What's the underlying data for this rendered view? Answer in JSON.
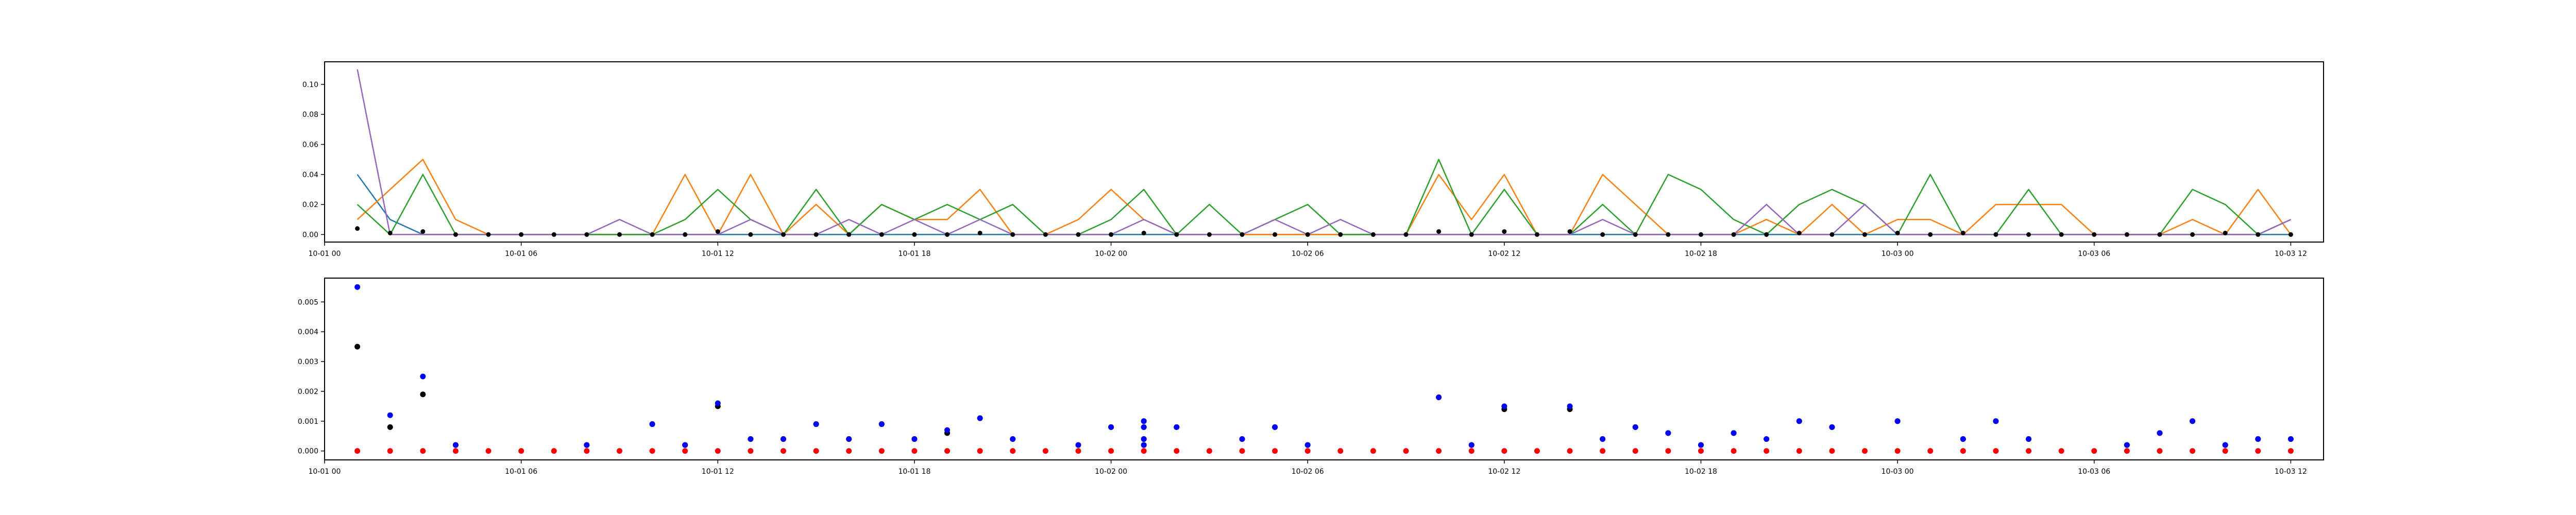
{
  "chart_data": [
    {
      "type": "line",
      "title": "",
      "xlabel": "",
      "ylabel": "",
      "xlim": [
        "10-01 00:00",
        "10-03 13:00"
      ],
      "ylim": [
        -0.005,
        0.115
      ],
      "xticks": [
        "10-01 00",
        "10-01 06",
        "10-01 12",
        "10-01 18",
        "10-02 00",
        "10-02 06",
        "10-02 12",
        "10-02 18",
        "10-03 00",
        "10-03 06",
        "10-03 12"
      ],
      "yticks": [
        "0.00",
        "0.02",
        "0.04",
        "0.06",
        "0.08",
        "0.10"
      ],
      "x": [
        "10-01 01:00",
        "10-01 02:00",
        "10-01 03:00",
        "10-01 04:00",
        "10-01 05:00",
        "10-01 06:00",
        "10-01 07:00",
        "10-01 08:00",
        "10-01 09:00",
        "10-01 10:00",
        "10-01 11:00",
        "10-01 12:00",
        "10-01 13:00",
        "10-01 14:00",
        "10-01 15:00",
        "10-01 16:00",
        "10-01 17:00",
        "10-01 18:00",
        "10-01 19:00",
        "10-01 20:00",
        "10-01 21:00",
        "10-01 22:00",
        "10-01 23:00",
        "10-02 00:00",
        "10-02 01:00",
        "10-02 02:00",
        "10-02 03:00",
        "10-02 04:00",
        "10-02 05:00",
        "10-02 06:00",
        "10-02 07:00",
        "10-02 08:00",
        "10-02 09:00",
        "10-02 10:00",
        "10-02 11:00",
        "10-02 12:00",
        "10-02 13:00",
        "10-02 14:00",
        "10-02 15:00",
        "10-02 16:00",
        "10-02 17:00",
        "10-02 18:00",
        "10-02 19:00",
        "10-02 20:00",
        "10-02 21:00",
        "10-02 22:00",
        "10-02 23:00",
        "10-03 00:00",
        "10-03 01:00",
        "10-03 02:00",
        "10-03 03:00",
        "10-03 04:00",
        "10-03 05:00",
        "10-03 06:00",
        "10-03 07:00",
        "10-03 08:00",
        "10-03 09:00",
        "10-03 10:00",
        "10-03 11:00",
        "10-03 12:00"
      ],
      "series": [
        {
          "color": "#1f77b4",
          "values": [
            0.04,
            0.01,
            0,
            0,
            0,
            0,
            0,
            0,
            0,
            0,
            0,
            0,
            0,
            0,
            0,
            0,
            0,
            0,
            0,
            0,
            0,
            0,
            0,
            0,
            0,
            0,
            0,
            0,
            0,
            0,
            0,
            0,
            0,
            0,
            0,
            0,
            0,
            0,
            0,
            0,
            0,
            0,
            0,
            0,
            0,
            0,
            0,
            0,
            0,
            0,
            0,
            0,
            0,
            0,
            0,
            0,
            0,
            0,
            0,
            0
          ]
        },
        {
          "color": "#ff7f0e",
          "values": [
            0.01,
            0.03,
            0.05,
            0.01,
            0,
            0,
            0,
            0,
            0,
            0,
            0.04,
            0,
            0.04,
            0,
            0.02,
            0,
            0.02,
            0.01,
            0.01,
            0.03,
            0,
            0,
            0.01,
            0.03,
            0.01,
            0,
            0,
            0,
            0,
            0,
            0,
            0,
            0,
            0.04,
            0.01,
            0.04,
            0,
            0,
            0.04,
            0.02,
            0,
            0,
            0,
            0.01,
            0,
            0.02,
            0,
            0.01,
            0.01,
            0,
            0.02,
            0.02,
            0.02,
            0,
            0,
            0,
            0.01,
            0,
            0.03,
            0
          ]
        },
        {
          "color": "#2ca02c",
          "values": [
            0.02,
            0,
            0.04,
            0,
            0,
            0,
            0,
            0,
            0,
            0,
            0.01,
            0.03,
            0.01,
            0,
            0.03,
            0,
            0.02,
            0.01,
            0.02,
            0.01,
            0.02,
            0,
            0,
            0.01,
            0.03,
            0,
            0.02,
            0,
            0.01,
            0.02,
            0,
            0,
            0,
            0.05,
            0,
            0.03,
            0,
            0,
            0.02,
            0,
            0.04,
            0.03,
            0.01,
            0,
            0.02,
            0.03,
            0.02,
            0,
            0.04,
            0,
            0,
            0.03,
            0,
            0,
            0,
            0,
            0.03,
            0.02,
            0,
            0.01
          ]
        },
        {
          "color": "#9467bd",
          "values": [
            0.11,
            0,
            0,
            0,
            0,
            0,
            0,
            0,
            0.01,
            0,
            0,
            0,
            0.01,
            0,
            0,
            0.01,
            0,
            0.01,
            0,
            0.01,
            0,
            0,
            0,
            0,
            0.01,
            0,
            0,
            0,
            0.01,
            0,
            0.01,
            0,
            0,
            0,
            0,
            0,
            0,
            0,
            0.01,
            0,
            0,
            0,
            0,
            0.02,
            0,
            0,
            0.02,
            0,
            0,
            0,
            0,
            0,
            0,
            0,
            0,
            0,
            0,
            0,
            0,
            0.01
          ]
        }
      ],
      "markers": {
        "color": "#000000",
        "x": [
          "10-01 01:00",
          "10-01 02:00",
          "10-01 03:00",
          "10-01 04:00",
          "10-01 05:00",
          "10-01 06:00",
          "10-01 07:00",
          "10-01 08:00",
          "10-01 09:00",
          "10-01 10:00",
          "10-01 11:00",
          "10-01 12:00",
          "10-01 13:00",
          "10-01 14:00",
          "10-01 15:00",
          "10-01 16:00",
          "10-01 17:00",
          "10-01 18:00",
          "10-01 19:00",
          "10-01 20:00",
          "10-01 21:00",
          "10-01 22:00",
          "10-01 23:00",
          "10-02 00:00",
          "10-02 01:00",
          "10-02 02:00",
          "10-02 03:00",
          "10-02 04:00",
          "10-02 05:00",
          "10-02 06:00",
          "10-02 07:00",
          "10-02 08:00",
          "10-02 09:00",
          "10-02 10:00",
          "10-02 11:00",
          "10-02 12:00",
          "10-02 13:00",
          "10-02 14:00",
          "10-02 15:00",
          "10-02 16:00",
          "10-02 17:00",
          "10-02 18:00",
          "10-02 19:00",
          "10-02 20:00",
          "10-02 21:00",
          "10-02 22:00",
          "10-02 23:00",
          "10-03 00:00",
          "10-03 01:00",
          "10-03 02:00",
          "10-03 03:00",
          "10-03 04:00",
          "10-03 05:00",
          "10-03 06:00",
          "10-03 07:00",
          "10-03 08:00",
          "10-03 09:00",
          "10-03 10:00",
          "10-03 11:00",
          "10-03 12:00"
        ],
        "values": [
          0.004,
          0.001,
          0.002,
          0,
          0,
          0,
          0,
          0,
          0,
          0,
          0,
          0.002,
          0,
          0,
          0,
          0,
          0,
          0,
          0,
          0.001,
          0,
          0,
          0,
          0,
          0.001,
          0,
          0,
          0,
          0,
          0,
          0,
          0,
          0,
          0.002,
          0,
          0.002,
          0,
          0.002,
          0,
          0,
          0,
          0,
          0,
          0,
          0.001,
          0,
          0,
          0.001,
          0,
          0.001,
          0,
          0,
          0,
          0,
          0,
          0,
          0,
          0.001,
          0,
          0
        ]
      }
    },
    {
      "type": "scatter",
      "title": "",
      "xlabel": "",
      "ylabel": "",
      "xlim": [
        "10-01 00:00",
        "10-03 13:00"
      ],
      "ylim": [
        -0.0003,
        0.0058
      ],
      "xticks": [
        "10-01 00",
        "10-01 06",
        "10-01 12",
        "10-01 18",
        "10-02 00",
        "10-02 06",
        "10-02 12",
        "10-02 18",
        "10-03 00",
        "10-03 06",
        "10-03 12"
      ],
      "yticks": [
        "0.000",
        "0.001",
        "0.002",
        "0.003",
        "0.004",
        "0.005"
      ],
      "series": [
        {
          "color": "#ff0000",
          "x": [
            "10-01 01:00",
            "10-01 02:00",
            "10-01 03:00",
            "10-01 04:00",
            "10-01 05:00",
            "10-01 06:00",
            "10-01 07:00",
            "10-01 08:00",
            "10-01 09:00",
            "10-01 10:00",
            "10-01 11:00",
            "10-01 12:00",
            "10-01 13:00",
            "10-01 14:00",
            "10-01 15:00",
            "10-01 16:00",
            "10-01 17:00",
            "10-01 18:00",
            "10-01 19:00",
            "10-01 20:00",
            "10-01 21:00",
            "10-01 22:00",
            "10-01 23:00",
            "10-02 00:00",
            "10-02 01:00",
            "10-02 02:00",
            "10-02 03:00",
            "10-02 04:00",
            "10-02 05:00",
            "10-02 06:00",
            "10-02 07:00",
            "10-02 08:00",
            "10-02 09:00",
            "10-02 10:00",
            "10-02 11:00",
            "10-02 12:00",
            "10-02 13:00",
            "10-02 14:00",
            "10-02 15:00",
            "10-02 16:00",
            "10-02 17:00",
            "10-02 18:00",
            "10-02 19:00",
            "10-02 20:00",
            "10-02 21:00",
            "10-02 22:00",
            "10-02 23:00",
            "10-03 00:00",
            "10-03 01:00",
            "10-03 02:00",
            "10-03 03:00",
            "10-03 04:00",
            "10-03 05:00",
            "10-03 06:00",
            "10-03 07:00",
            "10-03 08:00",
            "10-03 09:00",
            "10-03 10:00",
            "10-03 11:00",
            "10-03 12:00"
          ],
          "values": [
            0,
            0,
            0,
            0,
            0,
            0,
            0,
            0,
            0,
            0,
            0,
            0,
            0,
            0,
            0,
            0,
            0,
            0,
            0,
            0,
            0,
            0,
            0,
            0,
            0,
            0,
            0,
            0,
            0,
            0,
            0,
            0,
            0,
            0,
            0,
            0,
            0,
            0,
            0,
            0,
            0,
            0,
            0,
            0,
            0,
            0,
            0,
            0,
            0,
            0,
            0,
            0,
            0,
            0,
            0,
            0,
            0,
            0,
            0,
            0
          ]
        },
        {
          "color": "#000000",
          "x": [
            "10-01 01:00",
            "10-01 02:00",
            "10-01 03:00",
            "10-01 04:00",
            "10-01 08:00",
            "10-01 10:00",
            "10-01 11:00",
            "10-01 12:00",
            "10-01 13:00",
            "10-01 14:00",
            "10-01 15:00",
            "10-01 16:00",
            "10-01 17:00",
            "10-01 18:00",
            "10-01 19:00",
            "10-01 20:00",
            "10-01 21:00",
            "10-02 00:00",
            "10-02 01:00",
            "10-02 01:00",
            "10-02 01:00",
            "10-02 01:00",
            "10-02 02:00",
            "10-02 04:00",
            "10-02 05:00",
            "10-02 06:00",
            "10-02 10:00",
            "10-02 11:00",
            "10-02 12:00",
            "10-02 14:00",
            "10-02 15:00",
            "10-02 16:00",
            "10-02 17:00",
            "10-02 18:00",
            "10-02 19:00",
            "10-02 20:00",
            "10-02 21:00",
            "10-02 22:00",
            "10-03 00:00",
            "10-03 02:00",
            "10-03 03:00",
            "10-03 04:00",
            "10-03 07:00",
            "10-03 08:00",
            "10-03 09:00",
            "10-03 10:00",
            "10-03 11:00",
            "10-03 12:00"
          ],
          "values": [
            0.0035,
            0.0008,
            0.0019,
            0.0002,
            0.0002,
            0.0009,
            0.0002,
            0.0015,
            0.0004,
            0.0004,
            0.0009,
            0.0004,
            0.0009,
            0.0004,
            0.0006,
            0.0011,
            0.0004,
            0.0008,
            0.001,
            0.0008,
            0.0004,
            0.0002,
            0.0008,
            0.0004,
            0.0008,
            0.0002,
            0.0018,
            0.0002,
            0.0014,
            0.0014,
            0.0004,
            0.0008,
            0.0006,
            0.0002,
            0.0006,
            0.0004,
            0.001,
            0.0008,
            0.001,
            0.0004,
            0.001,
            0.0004,
            0.0002,
            0.0006,
            0.001,
            0.0002,
            0.0004,
            0.0004
          ]
        },
        {
          "color": "#0000ff",
          "x": [
            "10-01 01:00",
            "10-01 02:00",
            "10-01 03:00",
            "10-01 04:00",
            "10-01 08:00",
            "10-01 10:00",
            "10-01 11:00",
            "10-01 12:00",
            "10-01 13:00",
            "10-01 14:00",
            "10-01 15:00",
            "10-01 16:00",
            "10-01 17:00",
            "10-01 18:00",
            "10-01 19:00",
            "10-01 20:00",
            "10-01 21:00",
            "10-01 23:00",
            "10-02 00:00",
            "10-02 01:00",
            "10-02 01:00",
            "10-02 01:00",
            "10-02 01:00",
            "10-02 02:00",
            "10-02 04:00",
            "10-02 05:00",
            "10-02 06:00",
            "10-02 10:00",
            "10-02 11:00",
            "10-02 12:00",
            "10-02 14:00",
            "10-02 15:00",
            "10-02 16:00",
            "10-02 17:00",
            "10-02 18:00",
            "10-02 19:00",
            "10-02 20:00",
            "10-02 21:00",
            "10-02 22:00",
            "10-03 00:00",
            "10-03 02:00",
            "10-03 03:00",
            "10-03 04:00",
            "10-03 07:00",
            "10-03 08:00",
            "10-03 09:00",
            "10-03 10:00",
            "10-03 11:00",
            "10-03 12:00"
          ],
          "values": [
            0.0055,
            0.0012,
            0.0025,
            0.0002,
            0.0002,
            0.0009,
            0.0002,
            0.0016,
            0.0004,
            0.0004,
            0.0009,
            0.0004,
            0.0009,
            0.0004,
            0.0007,
            0.0011,
            0.0004,
            0.0002,
            0.0008,
            0.001,
            0.0008,
            0.0004,
            0.0002,
            0.0008,
            0.0004,
            0.0008,
            0.0002,
            0.0018,
            0.0002,
            0.0015,
            0.0015,
            0.0004,
            0.0008,
            0.0006,
            0.0002,
            0.0006,
            0.0004,
            0.001,
            0.0008,
            0.001,
            0.0004,
            0.001,
            0.0004,
            0.0002,
            0.0006,
            0.001,
            0.0002,
            0.0004,
            0.0004
          ]
        }
      ]
    }
  ]
}
